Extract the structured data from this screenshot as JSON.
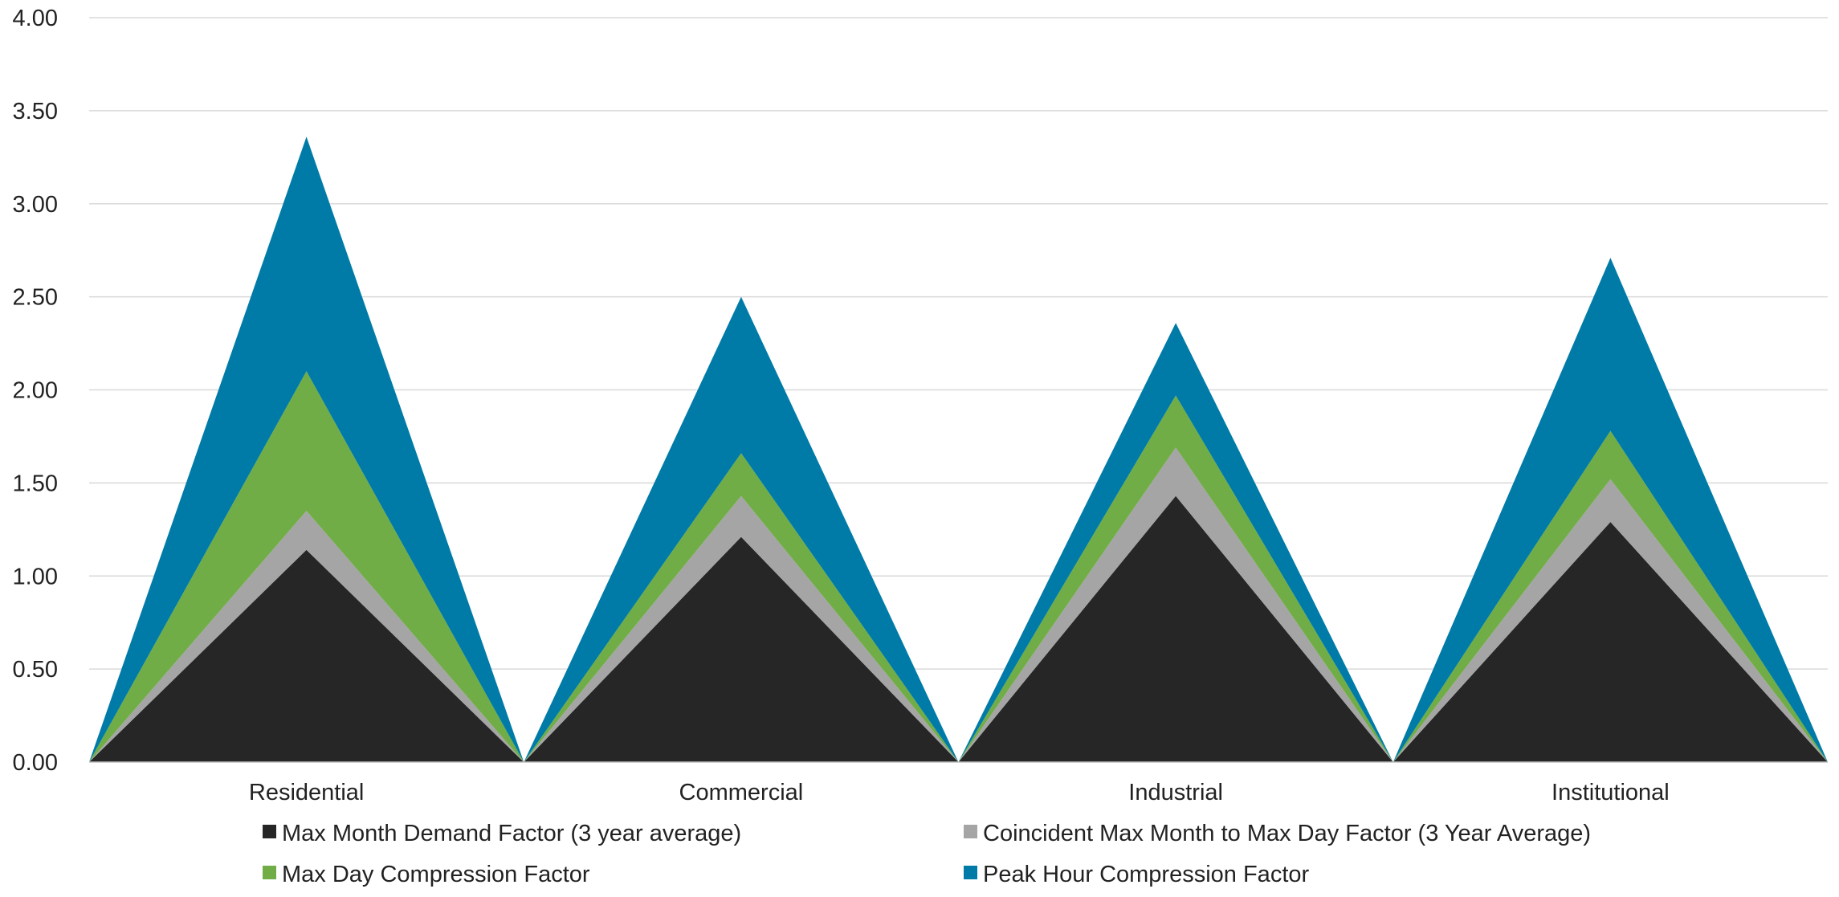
{
  "chart_data": {
    "type": "area",
    "stacked": true,
    "categories": [
      "Residential",
      "Commercial",
      "Industrial",
      "Institutional"
    ],
    "series": [
      {
        "name": "Max Month Demand Factor (3 year average)",
        "color": "#262626",
        "values": [
          1.14,
          1.21,
          1.43,
          1.29
        ]
      },
      {
        "name": "Coincident Max Month to Max Day Factor (3 Year Average)",
        "color": "#a5a5a5",
        "values": [
          0.21,
          0.22,
          0.26,
          0.23
        ]
      },
      {
        "name": "Max Day Compression Factor",
        "color": "#70ad47",
        "values": [
          0.75,
          0.23,
          0.28,
          0.26
        ]
      },
      {
        "name": "Peak Hour Compression Factor",
        "color": "#007ba7",
        "values": [
          1.26,
          0.84,
          0.39,
          0.93
        ]
      }
    ],
    "yticks": [
      "0.00",
      "0.50",
      "1.00",
      "1.50",
      "2.00",
      "2.50",
      "3.00",
      "3.50",
      "4.00"
    ],
    "ylim": [
      0,
      4
    ],
    "grid": true,
    "legend_position": "bottom"
  }
}
